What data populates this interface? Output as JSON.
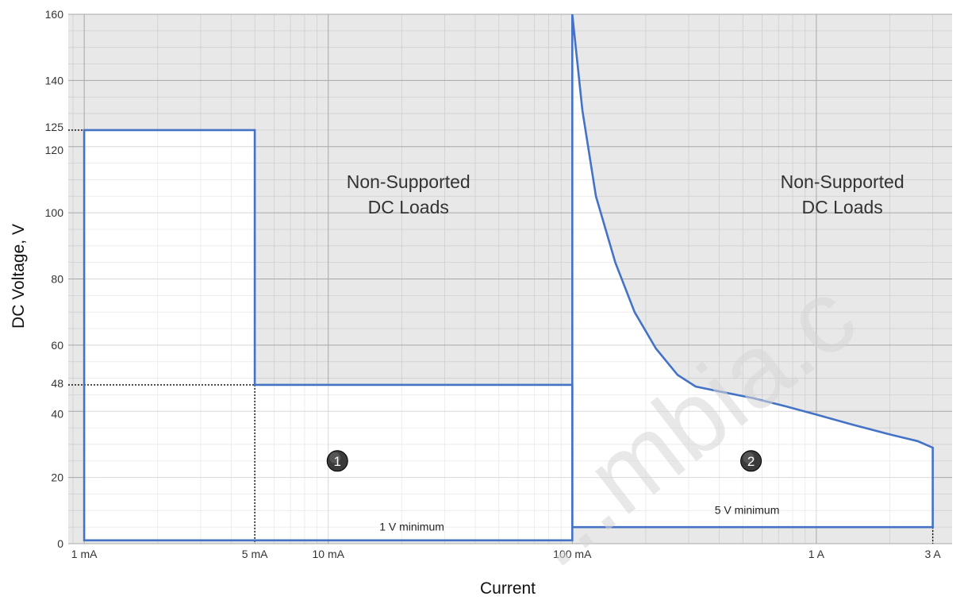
{
  "chart_data": {
    "type": "area",
    "x_scale": "log",
    "xlim_mA": [
      0.86,
      3600
    ],
    "ylim": [
      0,
      160
    ],
    "xlabel": "Current",
    "ylabel": "DC Voltage, V",
    "y_ticks": [
      0,
      20,
      40,
      48,
      60,
      80,
      100,
      120,
      125,
      140,
      160
    ],
    "x_ticks": [
      {
        "value_mA": 1,
        "label": "1 mA"
      },
      {
        "value_mA": 5,
        "label": "5 mA"
      },
      {
        "value_mA": 10,
        "label": "10 mA"
      },
      {
        "value_mA": 100,
        "label": "100 mA"
      },
      {
        "value_mA": 1000,
        "label": "1 A"
      },
      {
        "value_mA": 3000,
        "label": "3 A"
      }
    ],
    "grid": true,
    "shaded_region_label": [
      "Non-Supported",
      "DC Loads"
    ],
    "regions": [
      {
        "id": "1",
        "min_label": "1 V minimum",
        "boundary": [
          {
            "x_mA": 1,
            "y": 1
          },
          {
            "x_mA": 1,
            "y": 125
          },
          {
            "x_mA": 5,
            "y": 125
          },
          {
            "x_mA": 5,
            "y": 48
          },
          {
            "x_mA": 100,
            "y": 48
          },
          {
            "x_mA": 100,
            "y": 1
          }
        ]
      },
      {
        "id": "2",
        "min_label": "5 V minimum",
        "boundary": [
          {
            "x_mA": 100,
            "y": 5
          },
          {
            "x_mA": 100,
            "y": 160
          },
          {
            "x_mA": 110,
            "y": 131
          },
          {
            "x_mA": 125,
            "y": 105
          },
          {
            "x_mA": 150,
            "y": 85
          },
          {
            "x_mA": 180,
            "y": 70
          },
          {
            "x_mA": 220,
            "y": 59
          },
          {
            "x_mA": 270,
            "y": 51
          },
          {
            "x_mA": 320,
            "y": 47.5
          },
          {
            "x_mA": 400,
            "y": 46
          },
          {
            "x_mA": 550,
            "y": 44
          },
          {
            "x_mA": 750,
            "y": 41.5
          },
          {
            "x_mA": 1000,
            "y": 39
          },
          {
            "x_mA": 1400,
            "y": 36
          },
          {
            "x_mA": 2000,
            "y": 33
          },
          {
            "x_mA": 2600,
            "y": 31
          },
          {
            "x_mA": 3000,
            "y": 29
          },
          {
            "x_mA": 3000,
            "y": 5
          }
        ]
      }
    ],
    "reference_lines": [
      {
        "axis": "y",
        "value": 125,
        "x_to_mA": 1
      },
      {
        "axis": "y",
        "value": 48,
        "x_to_mA": 5
      },
      {
        "axis": "x",
        "value_mA": 5,
        "y_to": 48
      },
      {
        "axis": "x",
        "value_mA": 3000,
        "y_to": 5
      }
    ]
  },
  "watermark": "...mbia.c"
}
